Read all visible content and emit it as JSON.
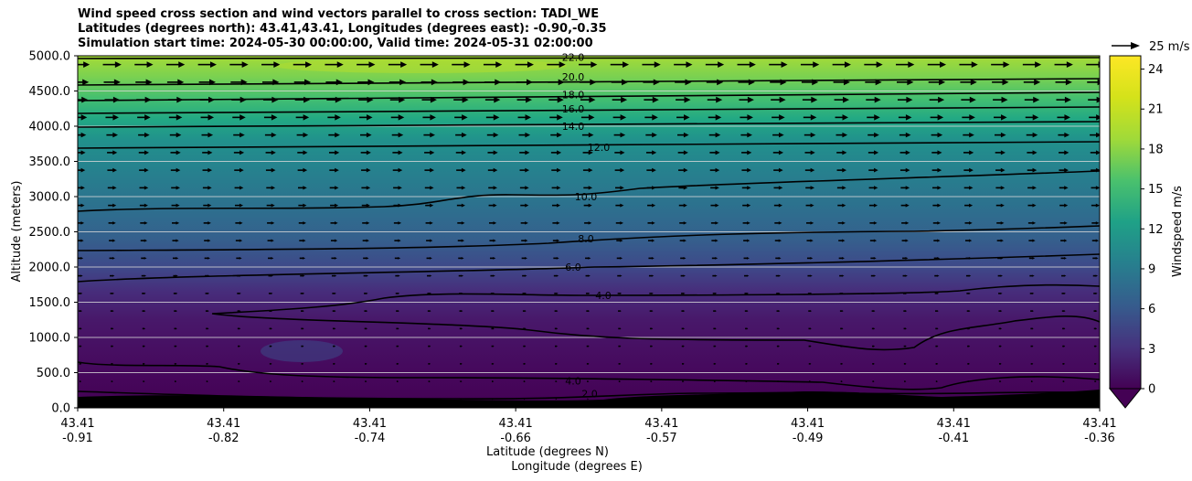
{
  "header": {
    "title_line1": "Wind speed cross section and wind vectors parallel to cross section: TADI_WE",
    "title_line2": "Latitudes (degrees north): 43.41,43.41, Longitudes (degrees east): -0.90,-0.35",
    "title_line3": "Simulation start time: 2024-05-30 00:00:00, Valid time: 2024-05-31 02:00:00"
  },
  "chart_data": {
    "type": "filled-contour cross section with wind vectors",
    "ylabel": "Altitude (meters)",
    "xlabel_line1": "Latitude (degrees N)",
    "xlabel_line2": "Longitude (degrees E)",
    "ylim": [
      0,
      5000
    ],
    "y_ticks": [
      "0.0",
      "500.0",
      "1000.0",
      "1500.0",
      "2000.0",
      "2500.0",
      "3000.0",
      "3500.0",
      "4000.0",
      "4500.0",
      "5000.0"
    ],
    "x_ticks": [
      {
        "lat": "43.41",
        "lon": "-0.91"
      },
      {
        "lat": "43.41",
        "lon": "-0.82"
      },
      {
        "lat": "43.41",
        "lon": "-0.74"
      },
      {
        "lat": "43.41",
        "lon": "-0.66"
      },
      {
        "lat": "43.41",
        "lon": "-0.57"
      },
      {
        "lat": "43.41",
        "lon": "-0.49"
      },
      {
        "lat": "43.41",
        "lon": "-0.41"
      },
      {
        "lat": "43.41",
        "lon": "-0.36"
      }
    ],
    "colorbar": {
      "label": "Windspeed m/s",
      "colormap": "viridis",
      "range": [
        0,
        25
      ],
      "ticks": [
        "0",
        "3",
        "6",
        "9",
        "12",
        "15",
        "18",
        "21",
        "24"
      ],
      "extend": "min"
    },
    "quiver_key": {
      "label": "25 m/s",
      "magnitude": 25
    },
    "contour_levels": [
      {
        "label": "22.0",
        "altitude_m": 4980
      },
      {
        "label": "20.0",
        "altitude_m": 4700
      },
      {
        "label": "18.0",
        "altitude_m": 4450
      },
      {
        "label": "16.0",
        "altitude_m": 4250
      },
      {
        "label": "14.0",
        "altitude_m": 4000
      },
      {
        "label": "12.0",
        "altitude_m": 3700
      },
      {
        "label": "10.0",
        "altitude_m": 3000
      },
      {
        "label": "8.0",
        "altitude_m": 2400
      },
      {
        "label": "6.0",
        "altitude_m": 2000
      },
      {
        "label": "4.0",
        "altitude_m": 1600
      },
      {
        "label": "4.0",
        "altitude_m": 380
      },
      {
        "label": "2.0",
        "altitude_m": 200
      }
    ],
    "wind_profile": [
      {
        "altitude_m": 250,
        "speed_ms": 2
      },
      {
        "altitude_m": 750,
        "speed_ms": 3
      },
      {
        "altitude_m": 1250,
        "speed_ms": 3.5
      },
      {
        "altitude_m": 1750,
        "speed_ms": 5
      },
      {
        "altitude_m": 2250,
        "speed_ms": 7
      },
      {
        "altitude_m": 2750,
        "speed_ms": 9
      },
      {
        "altitude_m": 3250,
        "speed_ms": 10.5
      },
      {
        "altitude_m": 3750,
        "speed_ms": 12
      },
      {
        "altitude_m": 4250,
        "speed_ms": 16
      },
      {
        "altitude_m": 4750,
        "speed_ms": 20
      }
    ]
  }
}
